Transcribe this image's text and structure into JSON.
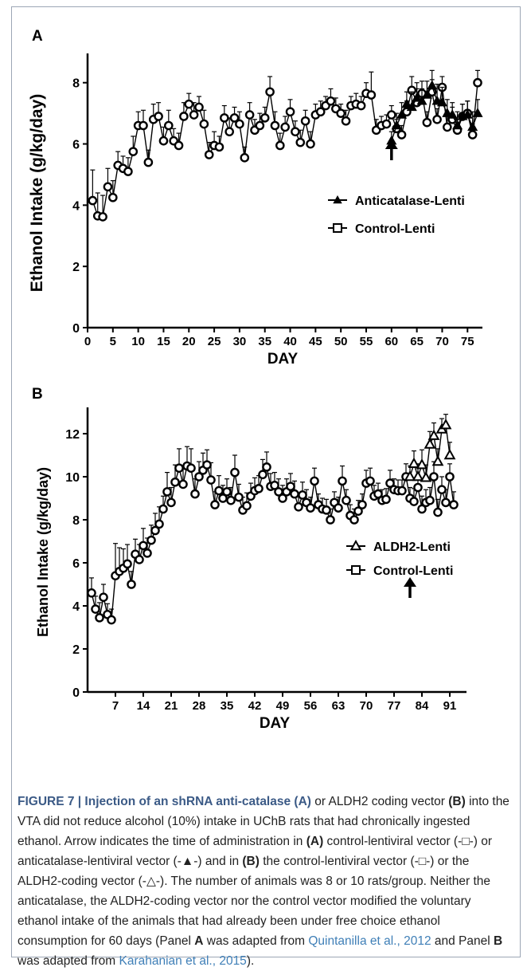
{
  "panels": [
    {
      "label": "A",
      "ylabel": "Ethanol Intake (g/kg/day)",
      "xlabel": "DAY",
      "legend": [
        "Anticatalase-Lenti",
        "Control-Lenti"
      ]
    },
    {
      "label": "B",
      "ylabel": "Ethanol Intake (g/kg/day)",
      "xlabel": "DAY",
      "legend": [
        "ALDH2-Lenti",
        "Control-Lenti"
      ]
    }
  ],
  "caption": {
    "title": "FIGURE 7 | Injection of an shRNA anti-catalase (A)",
    "t1": " or ALDH2 coding vector ",
    "bB1": "(B)",
    "t2": " into the VTA did not reduce alcohol (10%) intake in UChB rats that had chronically ingested ethanol. Arrow indicates the time of administration in ",
    "bA2": "(A)",
    "t3": " control-lentiviral vector (-□-) or anticatalase-lentiviral vector (-▲-) and in ",
    "bB2": "(B)",
    "t4": " the control-lentiviral vector (-□-) or the ALDH2-coding vector (-△-). The number of animals was 8 or 10 rats/group. Neither the anticatalase, the ALDH2-coding vector nor the control vector modified the voluntary ethanol intake of the animals that had already been under free choice ethanol consumption for 60 days (Panel ",
    "bA3": "A",
    "t5": " was adapted from ",
    "ref1": "Quintanilla et al., 2012",
    "t6": " and Panel ",
    "bB3": "B",
    "t7": " was adapted from ",
    "ref2": "Karahanian et al., 2015",
    "t8": ")."
  },
  "chart_data": [
    {
      "type": "line",
      "xlabel": "DAY",
      "ylabel": "Ethanol Intake (g/kg/day)",
      "xlim": [
        0,
        77
      ],
      "ylim": [
        0,
        8.8
      ],
      "xticks": [
        0,
        5,
        10,
        15,
        20,
        25,
        30,
        35,
        40,
        45,
        50,
        55,
        60,
        65,
        70,
        75
      ],
      "yticks": [
        0,
        2,
        4,
        6,
        8
      ],
      "arrow_day": 60,
      "series": [
        {
          "name": "Control-Lenti",
          "marker": "circle",
          "color": "#000000",
          "x": [
            1,
            2,
            3,
            4,
            5,
            6,
            7,
            8,
            9,
            10,
            11,
            12,
            13,
            14,
            15,
            16,
            17,
            18,
            19,
            20,
            21,
            22,
            23,
            24,
            25,
            26,
            27,
            28,
            29,
            30,
            31,
            32,
            33,
            34,
            35,
            36,
            37,
            38,
            39,
            40,
            41,
            42,
            43,
            44,
            45,
            46,
            47,
            48,
            49,
            50,
            51,
            52,
            53,
            54,
            55,
            56,
            57,
            58,
            59,
            60,
            61,
            62,
            63,
            64,
            65,
            66,
            67,
            68,
            69,
            70,
            71,
            72,
            73,
            74,
            75,
            76,
            77
          ],
          "y": [
            4.15,
            3.65,
            3.62,
            4.6,
            4.25,
            5.3,
            5.2,
            5.1,
            5.75,
            6.6,
            6.6,
            5.4,
            6.8,
            6.9,
            6.1,
            6.6,
            6.1,
            5.95,
            6.9,
            7.3,
            6.95,
            7.2,
            6.65,
            5.65,
            5.95,
            5.9,
            6.85,
            6.4,
            6.85,
            6.65,
            5.55,
            6.95,
            6.45,
            6.6,
            6.85,
            7.7,
            6.6,
            5.95,
            6.55,
            7.05,
            6.4,
            6.05,
            6.75,
            6.0,
            6.95,
            7.05,
            7.25,
            7.4,
            7.15,
            7.0,
            6.75,
            7.25,
            7.3,
            7.25,
            7.65,
            7.6,
            6.45,
            6.6,
            6.65,
            6.95,
            6.5,
            6.3,
            7.05,
            7.75,
            7.35,
            7.65,
            6.7,
            7.7,
            6.8,
            7.85,
            6.55,
            6.8,
            6.45,
            6.9,
            7.0,
            6.3,
            8.0
          ],
          "err": [
            1.0,
            0.75,
            0.7,
            0.6,
            0.55,
            0.45,
            0.4,
            0.45,
            0.5,
            0.45,
            0.5,
            0.4,
            0.5,
            0.45,
            0.45,
            0.5,
            0.4,
            0.4,
            0.45,
            0.35,
            0.4,
            0.35,
            0.45,
            0.4,
            0.45,
            0.35,
            0.4,
            0.45,
            0.35,
            0.4,
            0.35,
            0.4,
            0.35,
            0.4,
            0.35,
            0.5,
            0.45,
            0.4,
            0.35,
            0.4,
            0.35,
            0.4,
            0.35,
            0.4,
            0.35,
            0.35,
            0.3,
            0.4,
            0.35,
            0.3,
            0.35,
            0.3,
            0.35,
            0.3,
            0.35,
            0.75,
            0.35,
            0.3,
            0.3,
            0.3,
            0.3,
            0.3,
            0.35,
            0.45,
            0.45,
            0.4,
            0.35,
            0.4,
            0.35,
            0.35,
            0.35,
            0.4,
            0.35,
            0.4,
            0.4,
            0.35,
            0.4
          ]
        },
        {
          "name": "Anticatalase-Lenti",
          "marker": "triangle-filled",
          "color": "#000000",
          "x": [
            60,
            61,
            62,
            63,
            64,
            65,
            66,
            67,
            68,
            69,
            70,
            71,
            72,
            73,
            74,
            75,
            76,
            77
          ],
          "y": [
            6.1,
            6.6,
            6.95,
            7.3,
            7.2,
            7.5,
            7.4,
            7.6,
            7.9,
            7.4,
            7.35,
            7.0,
            6.95,
            6.6,
            6.9,
            6.95,
            6.55,
            7.0
          ],
          "err": [
            0.3,
            0.4,
            0.4,
            0.4,
            0.5,
            0.5,
            0.4,
            0.45,
            0.5,
            0.55,
            0.5,
            0.45,
            0.4,
            0.45,
            0.4,
            0.45,
            0.5,
            0.45
          ]
        }
      ]
    },
    {
      "type": "line",
      "xlabel": "DAY",
      "ylabel": "Ethanol Intake (g/kg/day)",
      "xlim": [
        0,
        94
      ],
      "ylim": [
        0,
        13
      ],
      "xticks": [
        7,
        14,
        21,
        28,
        35,
        42,
        49,
        56,
        63,
        70,
        77,
        84,
        91
      ],
      "yticks": [
        0,
        2,
        4,
        6,
        8,
        10,
        12
      ],
      "arrow_day": 81,
      "series": [
        {
          "name": "Control-Lenti",
          "marker": "circle",
          "color": "#000000",
          "x": [
            1,
            2,
            3,
            4,
            5,
            6,
            7,
            8,
            9,
            10,
            11,
            12,
            13,
            14,
            15,
            16,
            17,
            18,
            19,
            20,
            21,
            22,
            23,
            24,
            25,
            26,
            27,
            28,
            29,
            30,
            31,
            32,
            33,
            34,
            35,
            36,
            37,
            38,
            39,
            40,
            41,
            42,
            43,
            44,
            45,
            46,
            47,
            48,
            49,
            50,
            51,
            52,
            53,
            54,
            55,
            56,
            57,
            58,
            59,
            60,
            61,
            62,
            63,
            64,
            65,
            66,
            67,
            68,
            69,
            70,
            71,
            72,
            73,
            74,
            75,
            76,
            77,
            78,
            79,
            80,
            81,
            82,
            83,
            84,
            85,
            86,
            87,
            88,
            89,
            90,
            91,
            92
          ],
          "y": [
            4.6,
            3.85,
            3.45,
            4.4,
            3.6,
            3.35,
            5.4,
            5.6,
            5.75,
            5.95,
            5.0,
            6.4,
            6.15,
            6.8,
            6.45,
            7.05,
            7.5,
            7.8,
            8.5,
            9.3,
            8.8,
            9.75,
            10.4,
            9.65,
            10.5,
            10.4,
            9.2,
            10.0,
            10.3,
            10.55,
            9.85,
            8.7,
            9.35,
            9.0,
            9.3,
            8.9,
            10.2,
            9.05,
            8.45,
            8.65,
            9.1,
            9.35,
            9.45,
            10.1,
            10.45,
            9.55,
            9.6,
            9.3,
            9.0,
            9.3,
            9.55,
            9.2,
            8.6,
            9.15,
            8.8,
            8.55,
            9.8,
            8.7,
            8.5,
            8.45,
            8.0,
            8.8,
            8.55,
            9.8,
            8.9,
            8.2,
            8.0,
            8.4,
            8.7,
            9.7,
            9.8,
            9.1,
            9.2,
            8.9,
            8.95,
            9.7,
            9.4,
            9.35,
            9.35,
            10.0,
            9.0,
            8.85,
            9.5,
            8.5,
            8.8,
            8.9,
            10.0,
            8.35,
            9.4,
            8.8,
            10.0,
            8.7
          ],
          "err": [
            0.7,
            0.6,
            0.7,
            0.6,
            0.5,
            0.5,
            1.5,
            1.1,
            0.9,
            0.9,
            0.6,
            0.7,
            0.7,
            0.8,
            0.7,
            0.7,
            0.8,
            0.8,
            0.6,
            0.9,
            0.7,
            0.8,
            0.9,
            0.7,
            0.9,
            0.9,
            0.7,
            0.7,
            0.8,
            0.7,
            0.8,
            0.6,
            0.7,
            0.6,
            0.6,
            0.6,
            0.8,
            0.6,
            0.6,
            0.6,
            0.6,
            0.6,
            0.6,
            0.7,
            0.7,
            0.6,
            0.6,
            0.6,
            0.6,
            0.6,
            0.6,
            0.6,
            0.5,
            0.6,
            0.6,
            0.5,
            0.6,
            0.5,
            0.5,
            0.5,
            0.5,
            0.5,
            0.5,
            0.7,
            0.5,
            0.5,
            0.5,
            0.5,
            0.5,
            0.6,
            0.6,
            0.5,
            0.5,
            0.5,
            0.5,
            0.6,
            0.5,
            0.5,
            0.5,
            0.6,
            0.5,
            0.6,
            0.6,
            0.6,
            0.6,
            0.6,
            0.7,
            0.6,
            0.6,
            0.6,
            0.6,
            0.6
          ]
        },
        {
          "name": "ALDH2-Lenti",
          "marker": "triangle-open",
          "color": "#000000",
          "x": [
            81,
            82,
            83,
            84,
            85,
            86,
            87,
            88,
            89,
            90,
            91
          ],
          "y": [
            10.0,
            10.6,
            10.0,
            10.55,
            9.95,
            11.5,
            11.9,
            10.7,
            12.2,
            12.4,
            11.0
          ],
          "err": [
            0.5,
            0.6,
            0.6,
            0.7,
            0.6,
            0.6,
            0.6,
            0.6,
            0.5,
            0.5,
            0.6
          ]
        }
      ]
    }
  ]
}
